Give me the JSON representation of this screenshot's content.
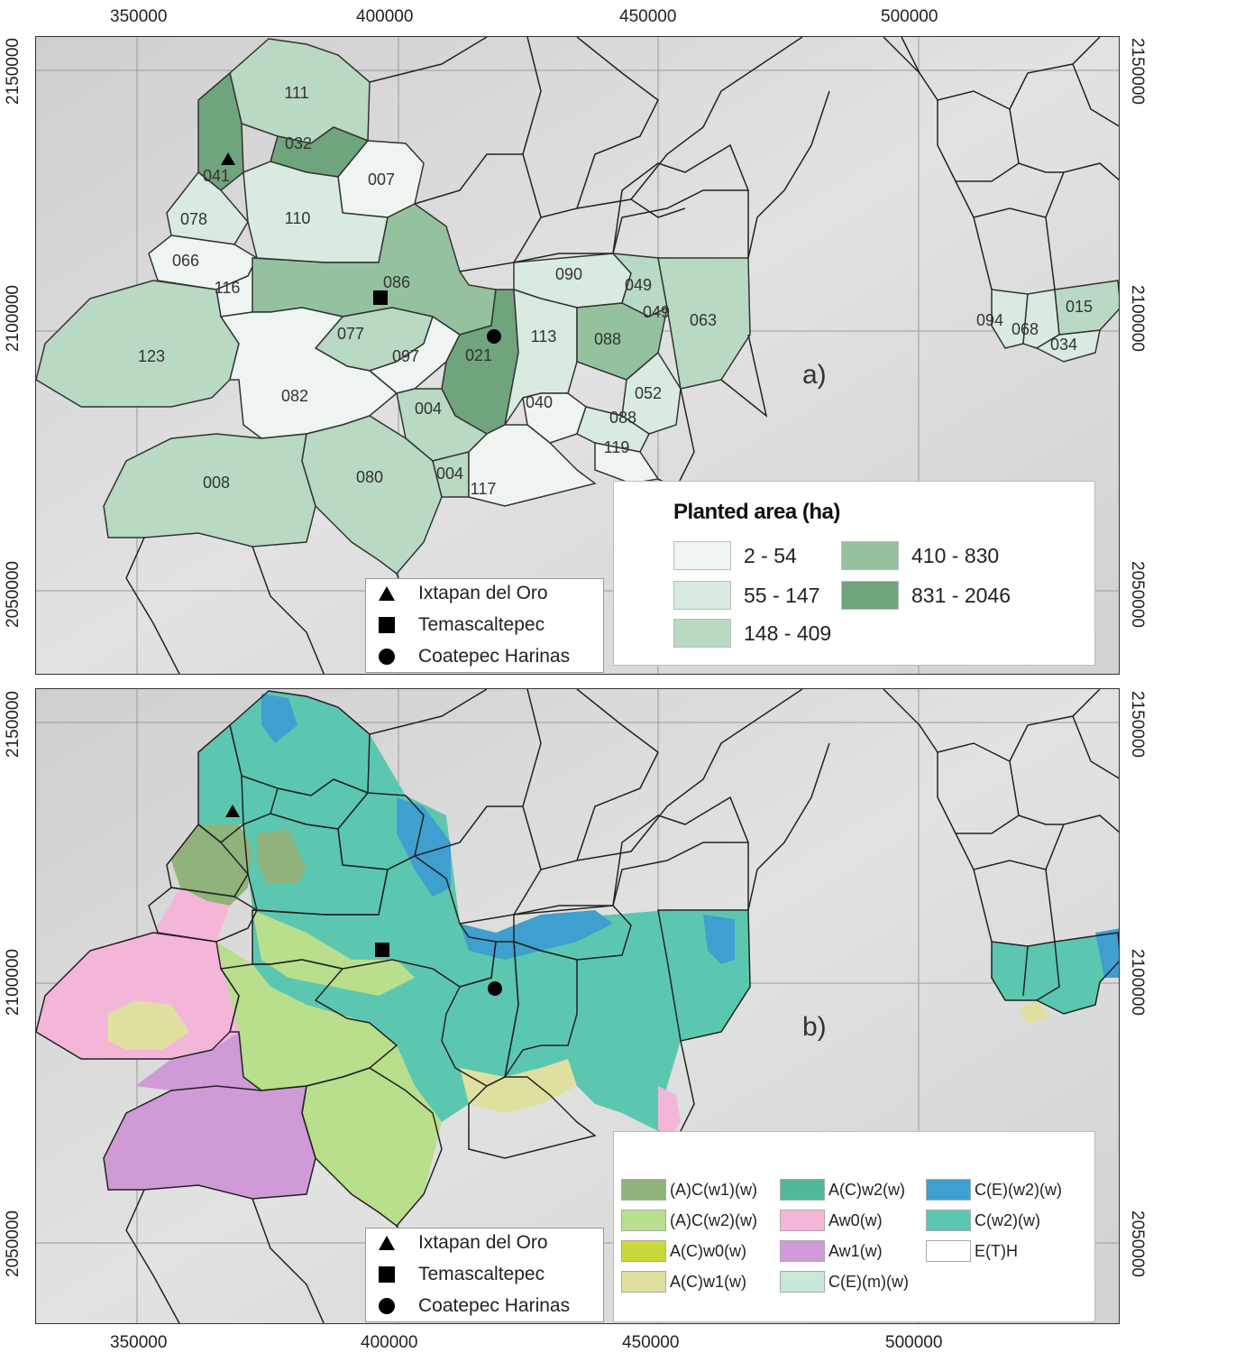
{
  "axes": {
    "x_ticks": [
      "350000",
      "400000",
      "450000",
      "500000"
    ],
    "y_ticks": [
      "2150000",
      "2100000",
      "2050000"
    ]
  },
  "panel_a": {
    "tag": "a)",
    "legend": {
      "title": "Planted area (ha)",
      "classes": [
        {
          "label": "2 - 54",
          "color": "#eef5f1"
        },
        {
          "label": "55 - 147",
          "color": "#d9ebe0"
        },
        {
          "label": "148 - 409",
          "color": "#b8d9c2"
        },
        {
          "label": "410 - 830",
          "color": "#94c29f"
        },
        {
          "label": "831 - 2046",
          "color": "#6fa47c"
        }
      ]
    },
    "municipalities": [
      {
        "label": "111"
      },
      {
        "label": "032"
      },
      {
        "label": "041"
      },
      {
        "label": "007"
      },
      {
        "label": "078"
      },
      {
        "label": "110"
      },
      {
        "label": "066"
      },
      {
        "label": "116"
      },
      {
        "label": "086"
      },
      {
        "label": "090"
      },
      {
        "label": "049"
      },
      {
        "label": "049"
      },
      {
        "label": "063"
      },
      {
        "label": "123"
      },
      {
        "label": "077"
      },
      {
        "label": "097"
      },
      {
        "label": "021"
      },
      {
        "label": "113"
      },
      {
        "label": "088"
      },
      {
        "label": "082"
      },
      {
        "label": "004"
      },
      {
        "label": "040"
      },
      {
        "label": "052"
      },
      {
        "label": "088"
      },
      {
        "label": "119"
      },
      {
        "label": "008"
      },
      {
        "label": "080"
      },
      {
        "label": "004"
      },
      {
        "label": "117"
      },
      {
        "label": "094"
      },
      {
        "label": "068"
      },
      {
        "label": "034"
      },
      {
        "label": "015"
      }
    ]
  },
  "panel_b": {
    "tag": "b)",
    "legend": {
      "classes": [
        {
          "label": "(A)C(w1)(w)",
          "color": "#8fb37a"
        },
        {
          "label": "(A)C(w2)(w)",
          "color": "#b9de8c"
        },
        {
          "label": "A(C)w0(w)",
          "color": "#c9d93a"
        },
        {
          "label": "A(C)w1(w)",
          "color": "#dfe0a0"
        },
        {
          "label": "A(C)w2(w)",
          "color": "#4fb89b"
        },
        {
          "label": "Aw0(w)",
          "color": "#f3b6d8"
        },
        {
          "label": "Aw1(w)",
          "color": "#cf9ad6"
        },
        {
          "label": "C(E)(m)(w)",
          "color": "#c8e8d8"
        },
        {
          "label": "C(E)(w2)(w)",
          "color": "#3f9fcf"
        },
        {
          "label": "C(w2)(w)",
          "color": "#5cc7b0"
        },
        {
          "label": "E(T)H",
          "color": "#ffffff"
        }
      ]
    }
  },
  "locations": [
    {
      "label": "Ixtapan del Oro",
      "symbol": "triangle"
    },
    {
      "label": "Temascaltepec",
      "symbol": "square"
    },
    {
      "label": "Coatepec Harinas",
      "symbol": "circle"
    }
  ]
}
